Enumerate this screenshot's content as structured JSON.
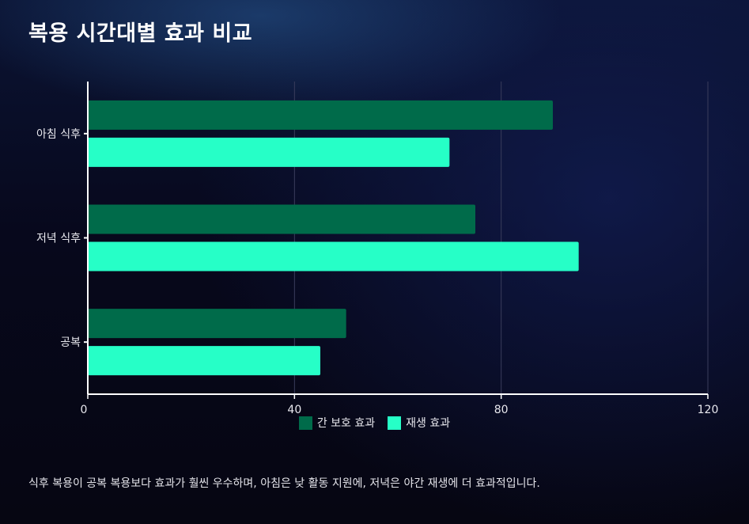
{
  "title": "복용 시간대별 효과 비교",
  "caption": "식후 복용이 공복 복용보다 효과가 훨씬 우수하며, 아침은 낮 활동 지원에, 저녁은 야간 재생에 더 효과적입니다.",
  "colors": {
    "series_dark": "#006b4a",
    "series_light": "#26ffc7",
    "axis": "#ffffff",
    "grid": "#3a3d5c",
    "tick_text": "#e8e8ee"
  },
  "chart_data": {
    "type": "bar",
    "orientation": "horizontal",
    "categories": [
      "아침 식후",
      "저녁 식후",
      "공복"
    ],
    "series": [
      {
        "name": "간 보호 효과",
        "values": [
          90,
          75,
          50
        ]
      },
      {
        "name": "재생 효과",
        "values": [
          70,
          95,
          45
        ]
      }
    ],
    "xlim": [
      0,
      120
    ],
    "xticks": [
      "0",
      "40",
      "80",
      "120"
    ],
    "grid": true,
    "legend_position": "bottom-center"
  }
}
